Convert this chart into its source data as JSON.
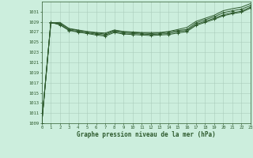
{
  "title": "Graphe pression niveau de la mer (hPa)",
  "background_color": "#cceedd",
  "grid_color": "#aaccbb",
  "line_color": "#2d5a2d",
  "x_ticks": [
    0,
    1,
    2,
    3,
    4,
    5,
    6,
    7,
    8,
    9,
    10,
    11,
    12,
    13,
    14,
    15,
    16,
    17,
    18,
    19,
    20,
    21,
    22,
    23
  ],
  "y_min": 1009,
  "y_max": 1033,
  "y_ticks": [
    1009,
    1011,
    1013,
    1015,
    1017,
    1019,
    1021,
    1023,
    1025,
    1027,
    1029,
    1031
  ],
  "lines": [
    {
      "y": [
        1009.0,
        1028.8,
        1028.9,
        1027.7,
        1027.4,
        1027.1,
        1026.9,
        1026.8,
        1027.4,
        1027.1,
        1027.0,
        1026.9,
        1026.9,
        1026.9,
        1027.1,
        1027.5,
        1027.9,
        1029.1,
        1029.7,
        1030.3,
        1031.2,
        1031.6,
        1031.9,
        1032.6
      ],
      "marker": false
    },
    {
      "y": [
        1009.0,
        1028.8,
        1028.7,
        1027.6,
        1027.3,
        1027.0,
        1026.8,
        1026.6,
        1027.3,
        1027.0,
        1026.9,
        1026.8,
        1026.7,
        1026.8,
        1027.0,
        1027.3,
        1027.5,
        1028.8,
        1029.4,
        1030.0,
        1030.8,
        1031.2,
        1031.5,
        1032.2
      ],
      "marker": true
    },
    {
      "y": [
        1009.0,
        1028.9,
        1028.5,
        1027.4,
        1027.1,
        1026.8,
        1026.6,
        1026.4,
        1027.1,
        1026.8,
        1026.7,
        1026.6,
        1026.5,
        1026.6,
        1026.7,
        1027.1,
        1027.3,
        1028.5,
        1029.1,
        1029.7,
        1030.4,
        1030.8,
        1031.1,
        1031.9
      ],
      "marker": true
    },
    {
      "y": [
        1009.0,
        1028.9,
        1028.4,
        1027.3,
        1027.0,
        1026.7,
        1026.4,
        1026.2,
        1026.9,
        1026.6,
        1026.5,
        1026.4,
        1026.3,
        1026.4,
        1026.5,
        1026.8,
        1027.1,
        1028.3,
        1028.9,
        1029.5,
        1030.2,
        1030.6,
        1030.9,
        1031.7
      ],
      "marker": true
    }
  ]
}
